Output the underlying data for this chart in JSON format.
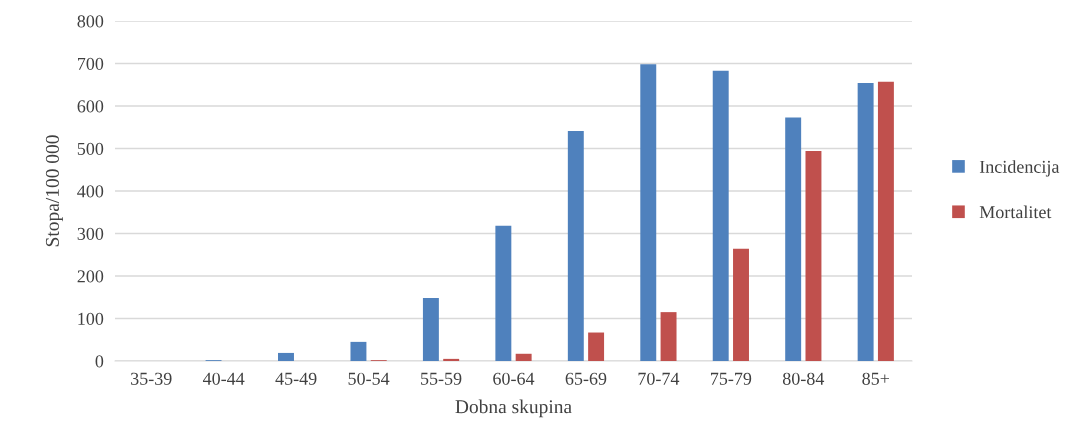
{
  "chart_data": {
    "type": "bar",
    "xlabel": "Dobna skupina",
    "ylabel": "Stopa/100 000",
    "categories": [
      "35-39",
      "40-44",
      "45-49",
      "50-54",
      "55-59",
      "60-64",
      "65-69",
      "70-74",
      "75-79",
      "80-84",
      "85+"
    ],
    "series": [
      {
        "name": "Incidencija",
        "color": "#4f81bd",
        "values": [
          0,
          2,
          19,
          45,
          148,
          318,
          541,
          698,
          683,
          573,
          654
        ]
      },
      {
        "name": "Mortalitet",
        "color": "#c0504d",
        "values": [
          0,
          0,
          0,
          2,
          5,
          17,
          67,
          115,
          264,
          494,
          657
        ]
      }
    ],
    "ylim": [
      0,
      800
    ],
    "yticks": [
      0,
      100,
      200,
      300,
      400,
      500,
      600,
      700,
      800
    ],
    "grid": "y",
    "legend": "right"
  }
}
